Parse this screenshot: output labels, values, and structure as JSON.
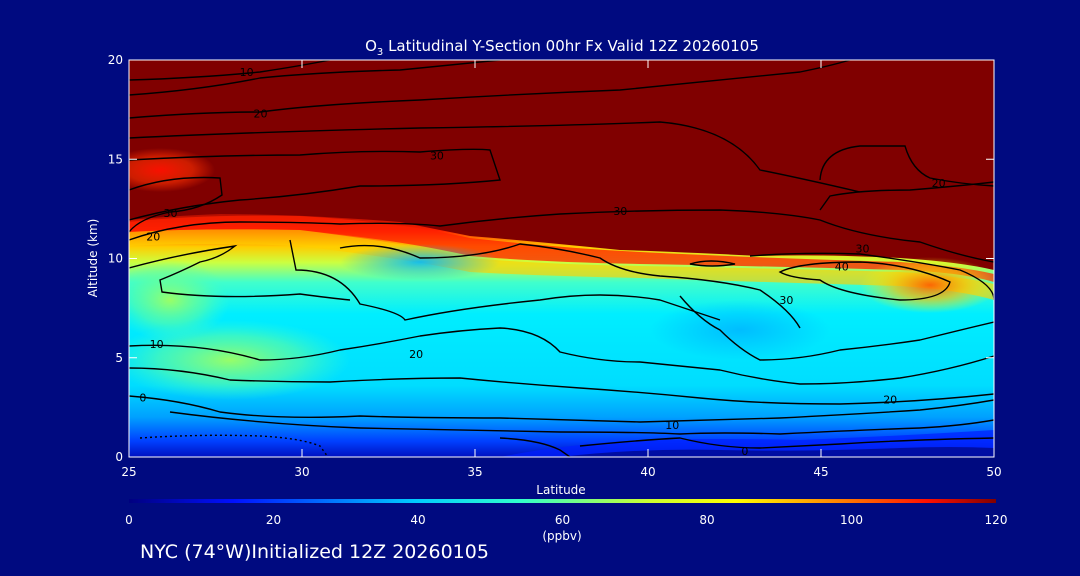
{
  "chart_data": {
    "type": "heatmap",
    "title": {
      "main": "O",
      "sub": "3",
      "rest": " Latitudinal Y-Section 00hr  Fx Valid 12Z 20260105"
    },
    "xlabel": "Latitude",
    "ylabel": "Altitude (km)",
    "xlim": [
      25,
      50
    ],
    "ylim": [
      0,
      20
    ],
    "x_ticks": [
      25,
      30,
      35,
      40,
      45,
      50
    ],
    "y_ticks": [
      0,
      5,
      10,
      15,
      20
    ],
    "colorbar": {
      "min": 0,
      "max": 120,
      "ticks": [
        0,
        20,
        40,
        60,
        80,
        100,
        120
      ],
      "unit": "(ppbv)"
    },
    "contour_labels": [
      {
        "lat": 28.4,
        "alt": 19.4,
        "text": "10"
      },
      {
        "lat": 28.8,
        "alt": 17.3,
        "text": "20"
      },
      {
        "lat": 33.9,
        "alt": 15.2,
        "text": "30"
      },
      {
        "lat": 26.2,
        "alt": 12.3,
        "text": "30"
      },
      {
        "lat": 25.7,
        "alt": 11.1,
        "text": "20"
      },
      {
        "lat": 39.2,
        "alt": 12.4,
        "text": "30"
      },
      {
        "lat": 48.4,
        "alt": 13.8,
        "text": "20"
      },
      {
        "lat": 46.2,
        "alt": 10.5,
        "text": "30"
      },
      {
        "lat": 45.6,
        "alt": 9.6,
        "text": "40"
      },
      {
        "lat": 44.0,
        "alt": 7.9,
        "text": "30"
      },
      {
        "lat": 25.8,
        "alt": 5.7,
        "text": "10"
      },
      {
        "lat": 33.3,
        "alt": 5.2,
        "text": "20"
      },
      {
        "lat": 25.4,
        "alt": 3.0,
        "text": "0"
      },
      {
        "lat": 40.7,
        "alt": 1.6,
        "text": "10"
      },
      {
        "lat": 47.0,
        "alt": 2.9,
        "text": "20"
      },
      {
        "lat": 42.8,
        "alt": 0.3,
        "text": "0"
      }
    ]
  },
  "footer": "NYC (74°W)Initialized 12Z 20260105"
}
